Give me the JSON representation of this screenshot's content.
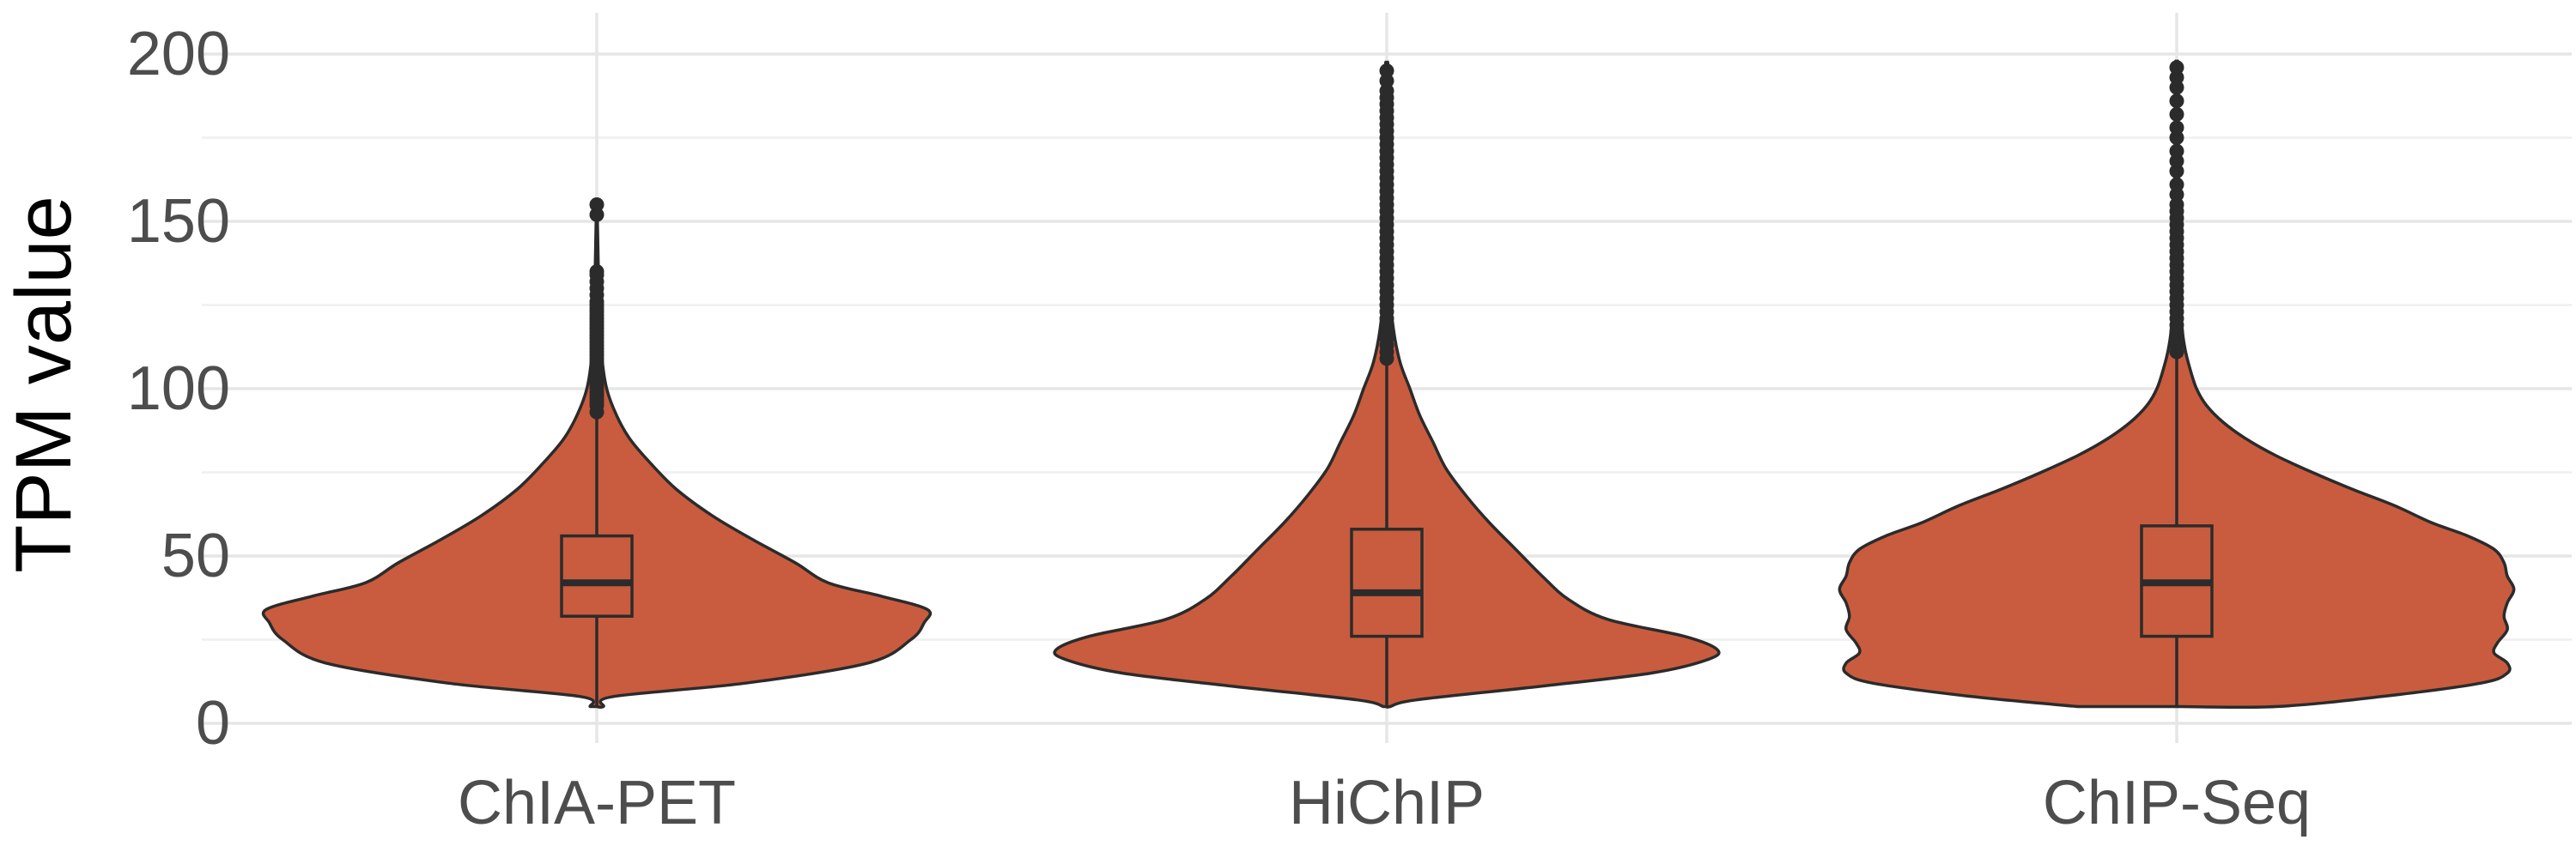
{
  "chart_data": {
    "type": "violin",
    "title": "",
    "xlabel": "",
    "ylabel": "TPM value",
    "ylim": [
      -8,
      203
    ],
    "yticks": [
      0,
      50,
      100,
      150,
      200
    ],
    "grid": true,
    "legend": "none",
    "fill_color": "#c95c3e",
    "categories": [
      "ChIA-PET",
      "HiChIP",
      "ChIP-Seq"
    ],
    "groups": [
      {
        "name": "ChIA-PET",
        "min": 5,
        "max": 155,
        "box": {
          "q1": 32,
          "median": 42,
          "q3": 56,
          "whisker_low": 5,
          "whisker_high": 92
        },
        "density": [
          [
            5,
            0.02
          ],
          [
            8,
            0.05
          ],
          [
            12,
            0.45
          ],
          [
            18,
            0.82
          ],
          [
            25,
            0.95
          ],
          [
            30,
            0.99
          ],
          [
            34,
            1.0
          ],
          [
            38,
            0.86
          ],
          [
            42,
            0.7
          ],
          [
            48,
            0.6
          ],
          [
            55,
            0.47
          ],
          [
            62,
            0.35
          ],
          [
            70,
            0.24
          ],
          [
            78,
            0.16
          ],
          [
            85,
            0.1
          ],
          [
            92,
            0.06
          ],
          [
            100,
            0.03
          ],
          [
            110,
            0.015
          ],
          [
            125,
            0.008
          ],
          [
            135,
            0.005
          ]
        ],
        "outliers": [
          93,
          95,
          96,
          97,
          98,
          99,
          100,
          101,
          102,
          103,
          104,
          105,
          106,
          107,
          108,
          109,
          110,
          111,
          112,
          113,
          114,
          115,
          116,
          117,
          118,
          119,
          120,
          121,
          122,
          123,
          124,
          125,
          126,
          128,
          130,
          132,
          134,
          135,
          152,
          155
        ]
      },
      {
        "name": "HiChIP",
        "min": 5,
        "max": 195,
        "box": {
          "q1": 26,
          "median": 39,
          "q3": 58,
          "whisker_low": 5,
          "whisker_high": 108
        },
        "density": [
          [
            5,
            0.01
          ],
          [
            7,
            0.09
          ],
          [
            11,
            0.46
          ],
          [
            15,
            0.8
          ],
          [
            19,
            0.97
          ],
          [
            22,
            1.0
          ],
          [
            26,
            0.9
          ],
          [
            31,
            0.67
          ],
          [
            37,
            0.55
          ],
          [
            44,
            0.47
          ],
          [
            52,
            0.39
          ],
          [
            60,
            0.31
          ],
          [
            68,
            0.24
          ],
          [
            76,
            0.18
          ],
          [
            84,
            0.14
          ],
          [
            92,
            0.1
          ],
          [
            100,
            0.07
          ],
          [
            108,
            0.04
          ],
          [
            118,
            0.02
          ],
          [
            130,
            0.01
          ],
          [
            160,
            0.006
          ],
          [
            195,
            0.004
          ]
        ],
        "outliers": [
          109,
          111,
          113,
          115,
          117,
          119,
          121,
          123,
          125,
          127,
          129,
          131,
          133,
          135,
          137,
          139,
          141,
          143,
          145,
          147,
          149,
          151,
          153,
          155,
          157,
          159,
          161,
          163,
          165,
          167,
          169,
          171,
          173,
          175,
          177,
          179,
          181,
          183,
          185,
          187,
          189,
          192,
          195
        ]
      },
      {
        "name": "ChIP-Seq",
        "min": 5,
        "max": 196,
        "box": {
          "q1": 26,
          "median": 42,
          "q3": 59,
          "whisker_low": 5,
          "whisker_high": 110
        },
        "density": [
          [
            5,
            0.3
          ],
          [
            8,
            0.62
          ],
          [
            12,
            0.92
          ],
          [
            15,
            1.0
          ],
          [
            18,
            1.0
          ],
          [
            21,
            0.96
          ],
          [
            24,
            0.97
          ],
          [
            28,
            1.0
          ],
          [
            32,
            0.99
          ],
          [
            36,
            1.0
          ],
          [
            40,
            1.02
          ],
          [
            44,
            1.0
          ],
          [
            48,
            0.99
          ],
          [
            52,
            0.96
          ],
          [
            56,
            0.88
          ],
          [
            60,
            0.77
          ],
          [
            65,
            0.66
          ],
          [
            70,
            0.53
          ],
          [
            75,
            0.41
          ],
          [
            80,
            0.3
          ],
          [
            85,
            0.21
          ],
          [
            90,
            0.14
          ],
          [
            95,
            0.09
          ],
          [
            100,
            0.06
          ],
          [
            106,
            0.04
          ],
          [
            112,
            0.025
          ],
          [
            120,
            0.015
          ],
          [
            140,
            0.008
          ],
          [
            170,
            0.005
          ],
          [
            196,
            0.004
          ]
        ],
        "outliers": [
          111,
          113,
          115,
          117,
          119,
          121,
          123,
          125,
          127,
          129,
          131,
          133,
          135,
          137,
          139,
          141,
          143,
          145,
          147,
          149,
          151,
          153,
          155,
          158,
          161,
          165,
          168,
          171,
          175,
          178,
          182,
          186,
          190,
          193,
          196
        ]
      }
    ]
  }
}
